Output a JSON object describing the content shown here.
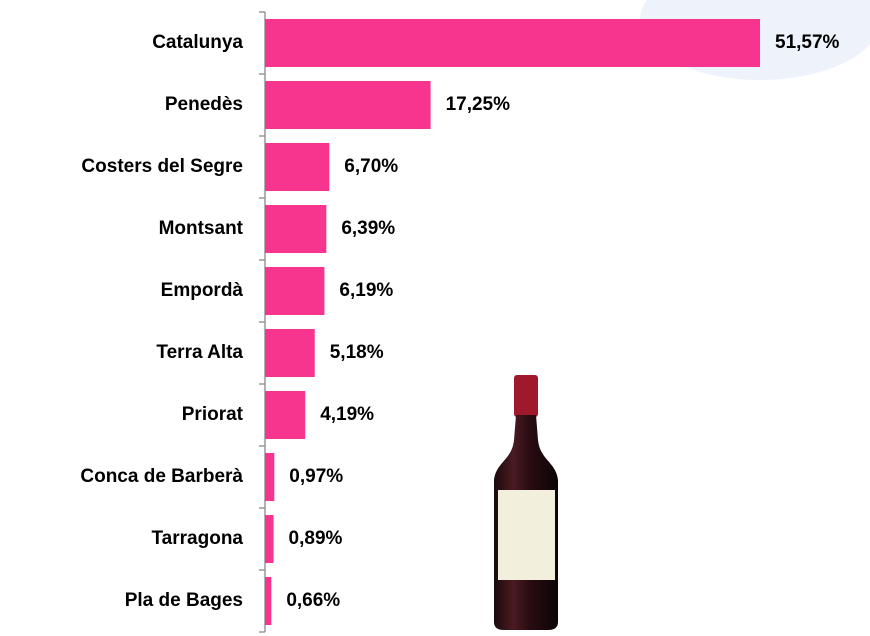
{
  "chart_data": {
    "type": "bar",
    "orientation": "horizontal",
    "categories": [
      "Catalunya",
      "Penedès",
      "Costers del Segre",
      "Montsant",
      "Empordà",
      "Terra Alta",
      "Priorat",
      "Conca de Barberà",
      "Tarragona",
      "Pla de Bages"
    ],
    "values": [
      51.57,
      17.25,
      6.7,
      6.39,
      6.19,
      5.18,
      4.19,
      0.97,
      0.89,
      0.66
    ],
    "value_labels": [
      "51,57%",
      "17,25%",
      "6,70%",
      "6,39%",
      "6,19%",
      "5,18%",
      "4,19%",
      "0,97%",
      "0,89%",
      "0,66%"
    ],
    "color": "#f7358f"
  }
}
